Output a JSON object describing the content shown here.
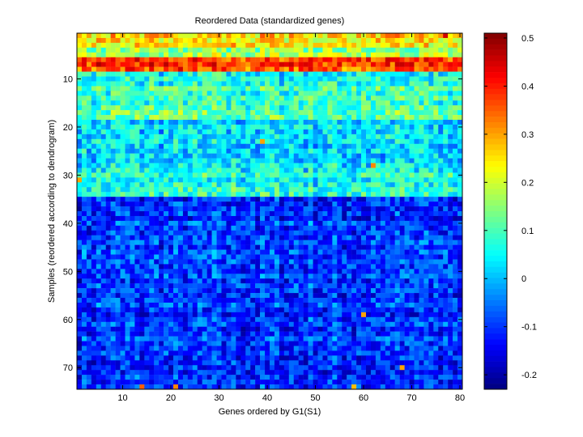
{
  "chart_data": {
    "type": "heatmap",
    "title": "Reordered Data (standardized genes)",
    "xlabel": "Genes ordered by G1(S1)",
    "ylabel": "Samples (reordered according to dendrogram)",
    "n_cols": 80,
    "n_rows": 74,
    "xlim": [
      0.5,
      80.5
    ],
    "ylim": [
      0.5,
      74.5
    ],
    "y_reversed": true,
    "x_ticks": [
      10,
      20,
      30,
      40,
      50,
      60,
      70,
      80
    ],
    "y_ticks": [
      10,
      20,
      30,
      40,
      50,
      60,
      70
    ],
    "colormap": "jet",
    "clim": [
      -0.23,
      0.51
    ],
    "colorbar": {
      "ticks": [
        -0.2,
        -0.1,
        0,
        0.1,
        0.2,
        0.3,
        0.4,
        0.5
      ],
      "tick_labels": [
        "-0.2",
        "-0.1",
        "0",
        "0.1",
        "0.2",
        "0.3",
        "0.4",
        "0.5"
      ],
      "position": "right"
    },
    "row_band_means": [
      {
        "rows": [
          1,
          3
        ],
        "mean": 0.25
      },
      {
        "rows": [
          4,
          5
        ],
        "mean": 0.16
      },
      {
        "rows": [
          6,
          8
        ],
        "mean": 0.38
      },
      {
        "rows": [
          9,
          11
        ],
        "mean": 0.06
      },
      {
        "rows": [
          12,
          18
        ],
        "mean": 0.1
      },
      {
        "rows": [
          19,
          29
        ],
        "mean": 0.02
      },
      {
        "rows": [
          30,
          34
        ],
        "mean": 0.07
      },
      {
        "rows": [
          35,
          74
        ],
        "mean": -0.1
      }
    ],
    "hot_cells": [
      {
        "row": 23,
        "col": 39,
        "value": 0.3
      },
      {
        "row": 28,
        "col": 62,
        "value": 0.32
      },
      {
        "row": 31,
        "col": 1,
        "value": 0.3
      },
      {
        "row": 59,
        "col": 60,
        "value": 0.3
      },
      {
        "row": 70,
        "col": 68,
        "value": 0.3
      },
      {
        "row": 74,
        "col": 14,
        "value": 0.35
      },
      {
        "row": 74,
        "col": 21,
        "value": 0.32
      },
      {
        "row": 74,
        "col": 58,
        "value": 0.28
      },
      {
        "row": 1,
        "col": 77,
        "value": 0.45
      },
      {
        "row": 7,
        "col": 43,
        "value": 0.45
      }
    ]
  }
}
